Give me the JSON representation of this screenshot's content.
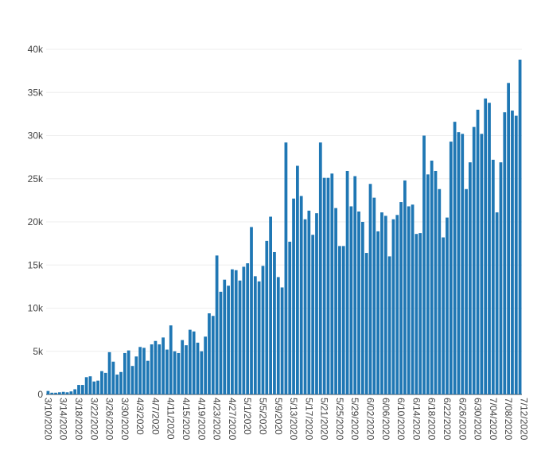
{
  "chart_data": {
    "type": "bar",
    "x_start": "2020-03-10",
    "x_end": "2020-07-12",
    "x_tick_labels": [
      "3/10/2020",
      "3/14/2020",
      "3/18/2020",
      "3/22/2020",
      "3/26/2020",
      "3/30/2020",
      "4/3/2020",
      "4/7/2020",
      "4/11/2020",
      "4/15/2020",
      "4/19/2020",
      "4/23/2020",
      "4/27/2020",
      "5/1/2020",
      "5/5/2020",
      "5/9/2020",
      "5/13/2020",
      "5/17/2020",
      "5/21/2020",
      "5/25/2020",
      "5/29/2020",
      "6/02/2020",
      "6/06/2020",
      "6/10/2020",
      "6/14/2020",
      "6/18/2020",
      "6/22/2020",
      "6/26/2020",
      "6/30/2020",
      "7/04/2020",
      "7/08/2020",
      "7/12/2020"
    ],
    "y_tick_labels": [
      "0",
      "5k",
      "10k",
      "15k",
      "20k",
      "25k",
      "30k",
      "35k",
      "40k"
    ],
    "y_tick_values": [
      0,
      5000,
      10000,
      15000,
      20000,
      25000,
      30000,
      35000,
      40000
    ],
    "ylim": [
      0,
      40000
    ],
    "color": "#1f77b4",
    "values": [
      400,
      200,
      200,
      250,
      300,
      250,
      350,
      600,
      1100,
      1100,
      2000,
      2100,
      1500,
      1600,
      2700,
      2500,
      4900,
      3800,
      2300,
      2600,
      4800,
      5100,
      3300,
      4400,
      5500,
      5400,
      3900,
      5800,
      6200,
      5800,
      6600,
      5200,
      8000,
      5000,
      4800,
      6300,
      5700,
      7500,
      7300,
      6000,
      5000,
      6700,
      9400,
      9100,
      16100,
      11900,
      13300,
      12600,
      14500,
      14400,
      13200,
      14800,
      15200,
      19400,
      13700,
      13100,
      14900,
      17800,
      20600,
      16500,
      13600,
      12400,
      29200,
      17700,
      22700,
      26500,
      23000,
      20300,
      21300,
      18500,
      21000,
      29200,
      25100,
      25100,
      25600,
      21600,
      17200,
      17200,
      25900,
      21800,
      25300,
      21200,
      20000,
      16400,
      24400,
      22800,
      18900,
      21100,
      20700,
      16000,
      20300,
      20800,
      22300,
      24800,
      21800,
      22000,
      18600,
      18700,
      30000,
      25500,
      27100,
      25900,
      23800,
      18200,
      20500,
      29300,
      31600,
      30400,
      30200,
      23800,
      26900,
      31000,
      33000,
      30200,
      34300,
      33800,
      27200,
      21100,
      26900,
      32700,
      36100,
      32900,
      32300,
      38800
    ]
  }
}
